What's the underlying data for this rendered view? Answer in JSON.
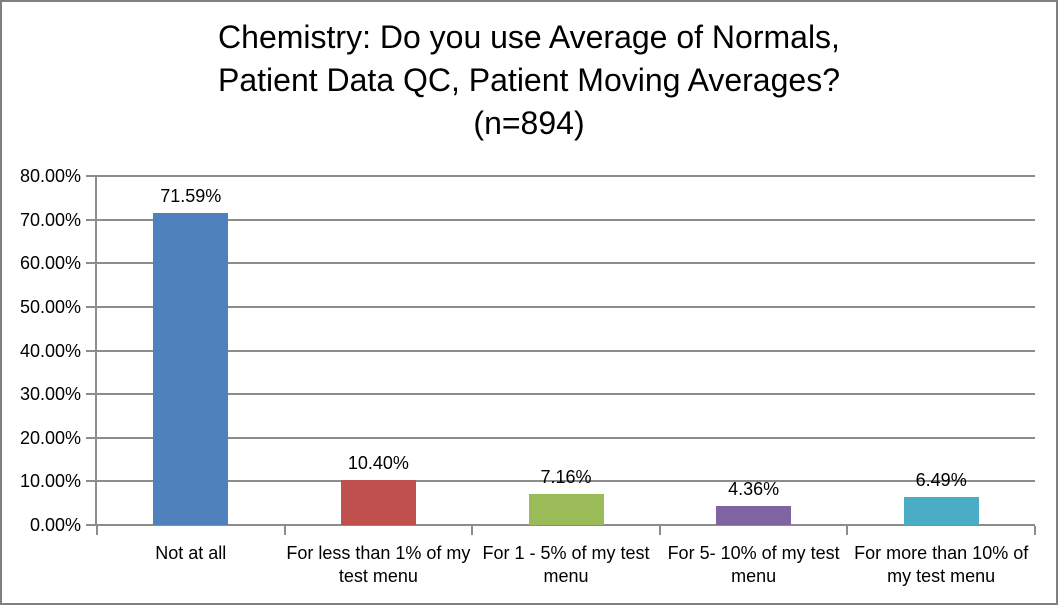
{
  "chart_data": {
    "type": "bar",
    "title": "Chemistry: Do you use Average of Normals, Patient Data QC, Patient Moving Averages? (n=894)",
    "title_lines": [
      "Chemistry: Do you use Average of Normals,",
      "Patient Data QC, Patient Moving Averages?",
      "(n=894)"
    ],
    "categories": [
      "Not at all",
      "For less than 1% of my test menu",
      "For 1 - 5% of my test menu",
      "For 5- 10% of my test menu",
      "For more than 10% of my test menu"
    ],
    "values": [
      71.59,
      10.4,
      7.16,
      4.36,
      6.49
    ],
    "value_labels": [
      "71.59%",
      "10.40%",
      "7.16%",
      "4.36%",
      "6.49%"
    ],
    "bar_colors": [
      "#4F81BD",
      "#C0504D",
      "#9BBB59",
      "#8064A2",
      "#4BACC6"
    ],
    "xlabel": "",
    "ylabel": "",
    "y_axis": {
      "min": 0,
      "max": 80,
      "step": 10,
      "tick_labels": [
        "0.00%",
        "10.00%",
        "20.00%",
        "30.00%",
        "40.00%",
        "50.00%",
        "60.00%",
        "70.00%",
        "80.00%"
      ]
    },
    "grid": true,
    "legend": "none",
    "colors": {
      "gridline": "#8C8C8C",
      "axis": "#8C8C8C",
      "frame_border": "#808080",
      "background": "#FFFFFF",
      "text": "#000000"
    }
  }
}
